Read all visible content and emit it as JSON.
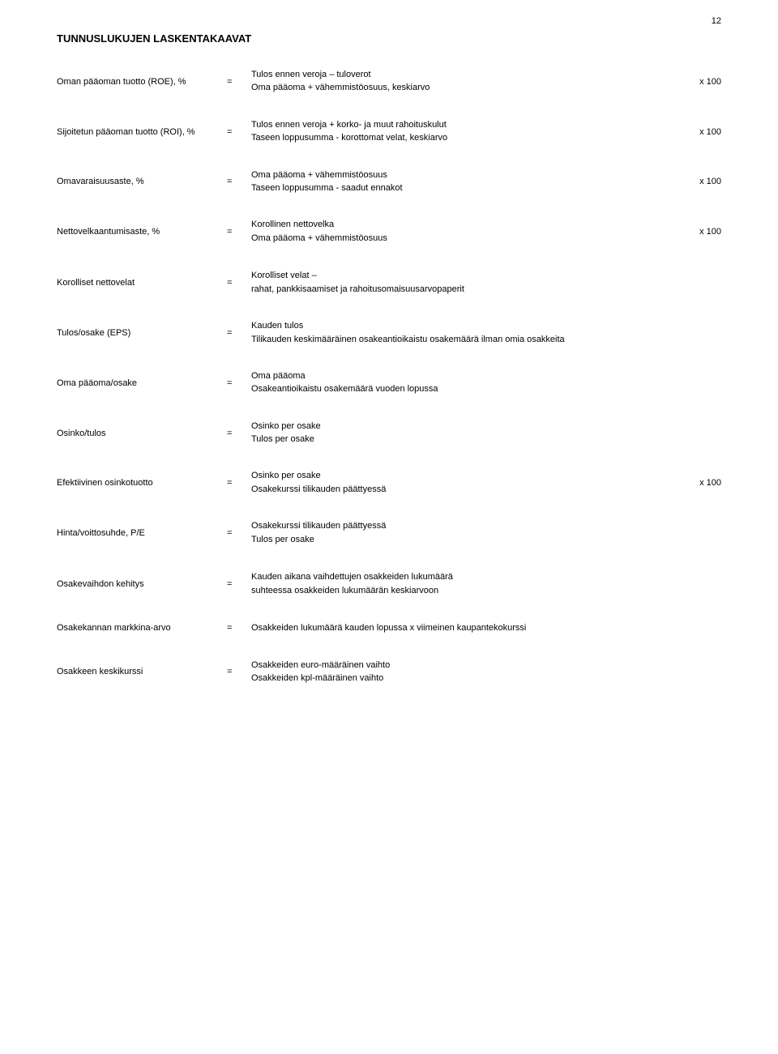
{
  "page_number": "12",
  "title": "TUNNUSLUKUJEN LASKENTAKAAVAT",
  "formulas": [
    {
      "label": "Oman pääoman tuotto (ROE), %",
      "numerator": "Tulos ennen veroja – tuloverot",
      "divider": "–––––––––––––––––––––––––––––––––––––––––––",
      "denominator": "Oma pääoma + vähemmistöosuus, keskiarvo",
      "suffix": "x 100",
      "type": "fraction"
    },
    {
      "label": "Sijoitetun pääoman tuotto (ROI), %",
      "numerator": "Tulos ennen veroja + korko- ja muut rahoituskulut",
      "divider": "––––––––––––––––––––––––––––––––––––––––––––––",
      "denominator": "Taseen loppusumma - korottomat velat, keskiarvo",
      "suffix": "x 100",
      "type": "fraction"
    },
    {
      "label": "Omavaraisuusaste, %",
      "numerator": "Oma pääoma + vähemmistöosuus",
      "divider": "–––––––––––––––––––––––––––––––––––––––––––––",
      "denominator": "Taseen loppusumma - saadut ennakot",
      "suffix": "x 100",
      "type": "fraction"
    },
    {
      "label": "Nettovelkaantumisaste, %",
      "numerator": "Korollinen nettovelka",
      "divider": "––––––––––––––––––––––––––––––––––––––––––––––––",
      "denominator": "Oma pääoma + vähemmistöosuus",
      "suffix": "x 100",
      "type": "fraction"
    },
    {
      "label": "Korolliset nettovelat",
      "line1": "Korolliset velat –",
      "line2": "rahat, pankkisaamiset ja rahoitusomaisuusarvopaperit",
      "type": "plain"
    },
    {
      "label": "Tulos/osake (EPS)",
      "numerator": "Kauden tulos",
      "divider": "––––––––––––––––––––––––––––––––––––––––––––––––––––––––",
      "denominator": "Tilikauden keskimääräinen osakeantioikaistu osakemäärä ilman omia osakkeita",
      "suffix": "",
      "type": "fraction"
    },
    {
      "label": "Oma pääoma/osake",
      "numerator": "Oma pääoma",
      "divider": "–––––––––––––––––––––––––––––––––––––––––––––",
      "denominator": "Osakeantioikaistu osakemäärä vuoden lopussa",
      "suffix": "",
      "type": "fraction"
    },
    {
      "label": "Osinko/tulos",
      "numerator": "Osinko per osake",
      "divider": "––––––––––––––––––––––––––––––––––––––––––––––",
      "denominator": "Tulos per osake",
      "suffix": "",
      "type": "fraction"
    },
    {
      "label": "Efektiivinen osinkotuotto",
      "numerator": "Osinko per osake",
      "divider": "–––––––––––––––––––––––––––––––––––––––––––––––––––",
      "denominator": "Osakekurssi tilikauden päättyessä",
      "suffix": "x 100",
      "type": "fraction"
    },
    {
      "label": "Hinta/voittosuhde, P/E",
      "numerator": "Osakekurssi tilikauden päättyessä",
      "divider": "–––––––––––––––––––––––––––––––––––––––––––––",
      "denominator": "Tulos per osake",
      "suffix": "",
      "type": "fraction"
    },
    {
      "label": "Osakevaihdon kehitys",
      "line1": "Kauden aikana vaihdettujen osakkeiden lukumäärä",
      "line2": "suhteessa osakkeiden lukumäärän keskiarvoon",
      "type": "plain"
    },
    {
      "label": "Osakekannan markkina-arvo",
      "line1": "Osakkeiden lukumäärä kauden lopussa x viimeinen kaupantekokurssi",
      "type": "plain"
    },
    {
      "label": "Osakkeen keskikurssi",
      "numerator": "Osakkeiden euro-määräinen vaihto",
      "divider": "–––––––––––––––––––––––––––––––––––––––––––",
      "denominator": "Osakkeiden kpl-määräinen vaihto",
      "suffix": "",
      "type": "fraction"
    }
  ]
}
